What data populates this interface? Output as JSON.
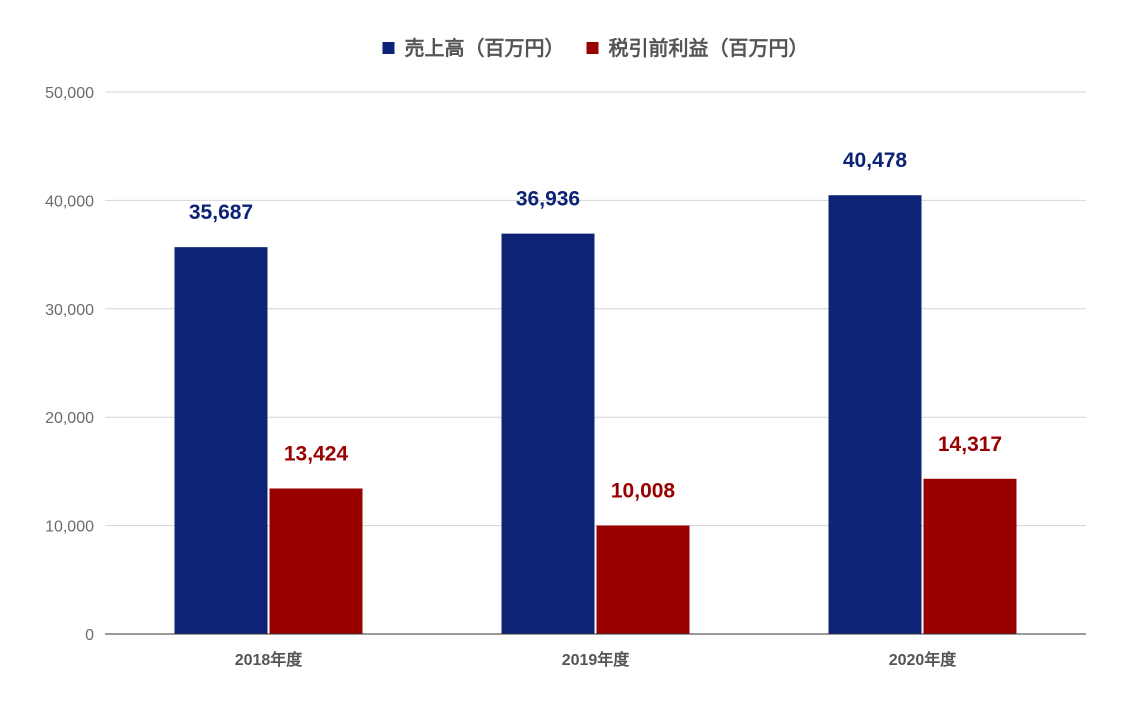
{
  "chart_data": {
    "type": "bar",
    "categories": [
      "2018年度",
      "2019年度",
      "2020年度"
    ],
    "series": [
      {
        "name": "売上高（百万円）",
        "color": "#0d2375",
        "values": [
          35687,
          36936,
          40478
        ],
        "labels": [
          "35,687",
          "36,936",
          "40,478"
        ]
      },
      {
        "name": "税引前利益（百万円）",
        "color": "#990000",
        "values": [
          13424,
          10008,
          14317
        ],
        "labels": [
          "13,424",
          "10,008",
          "14,317"
        ]
      }
    ],
    "ylim": [
      0,
      50000
    ],
    "yticks": [
      0,
      10000,
      20000,
      30000,
      40000,
      50000
    ],
    "ytick_labels": [
      "0",
      "10,000",
      "20,000",
      "30,000",
      "40,000",
      "50,000"
    ],
    "grid": true,
    "legend_position": "top-center"
  }
}
